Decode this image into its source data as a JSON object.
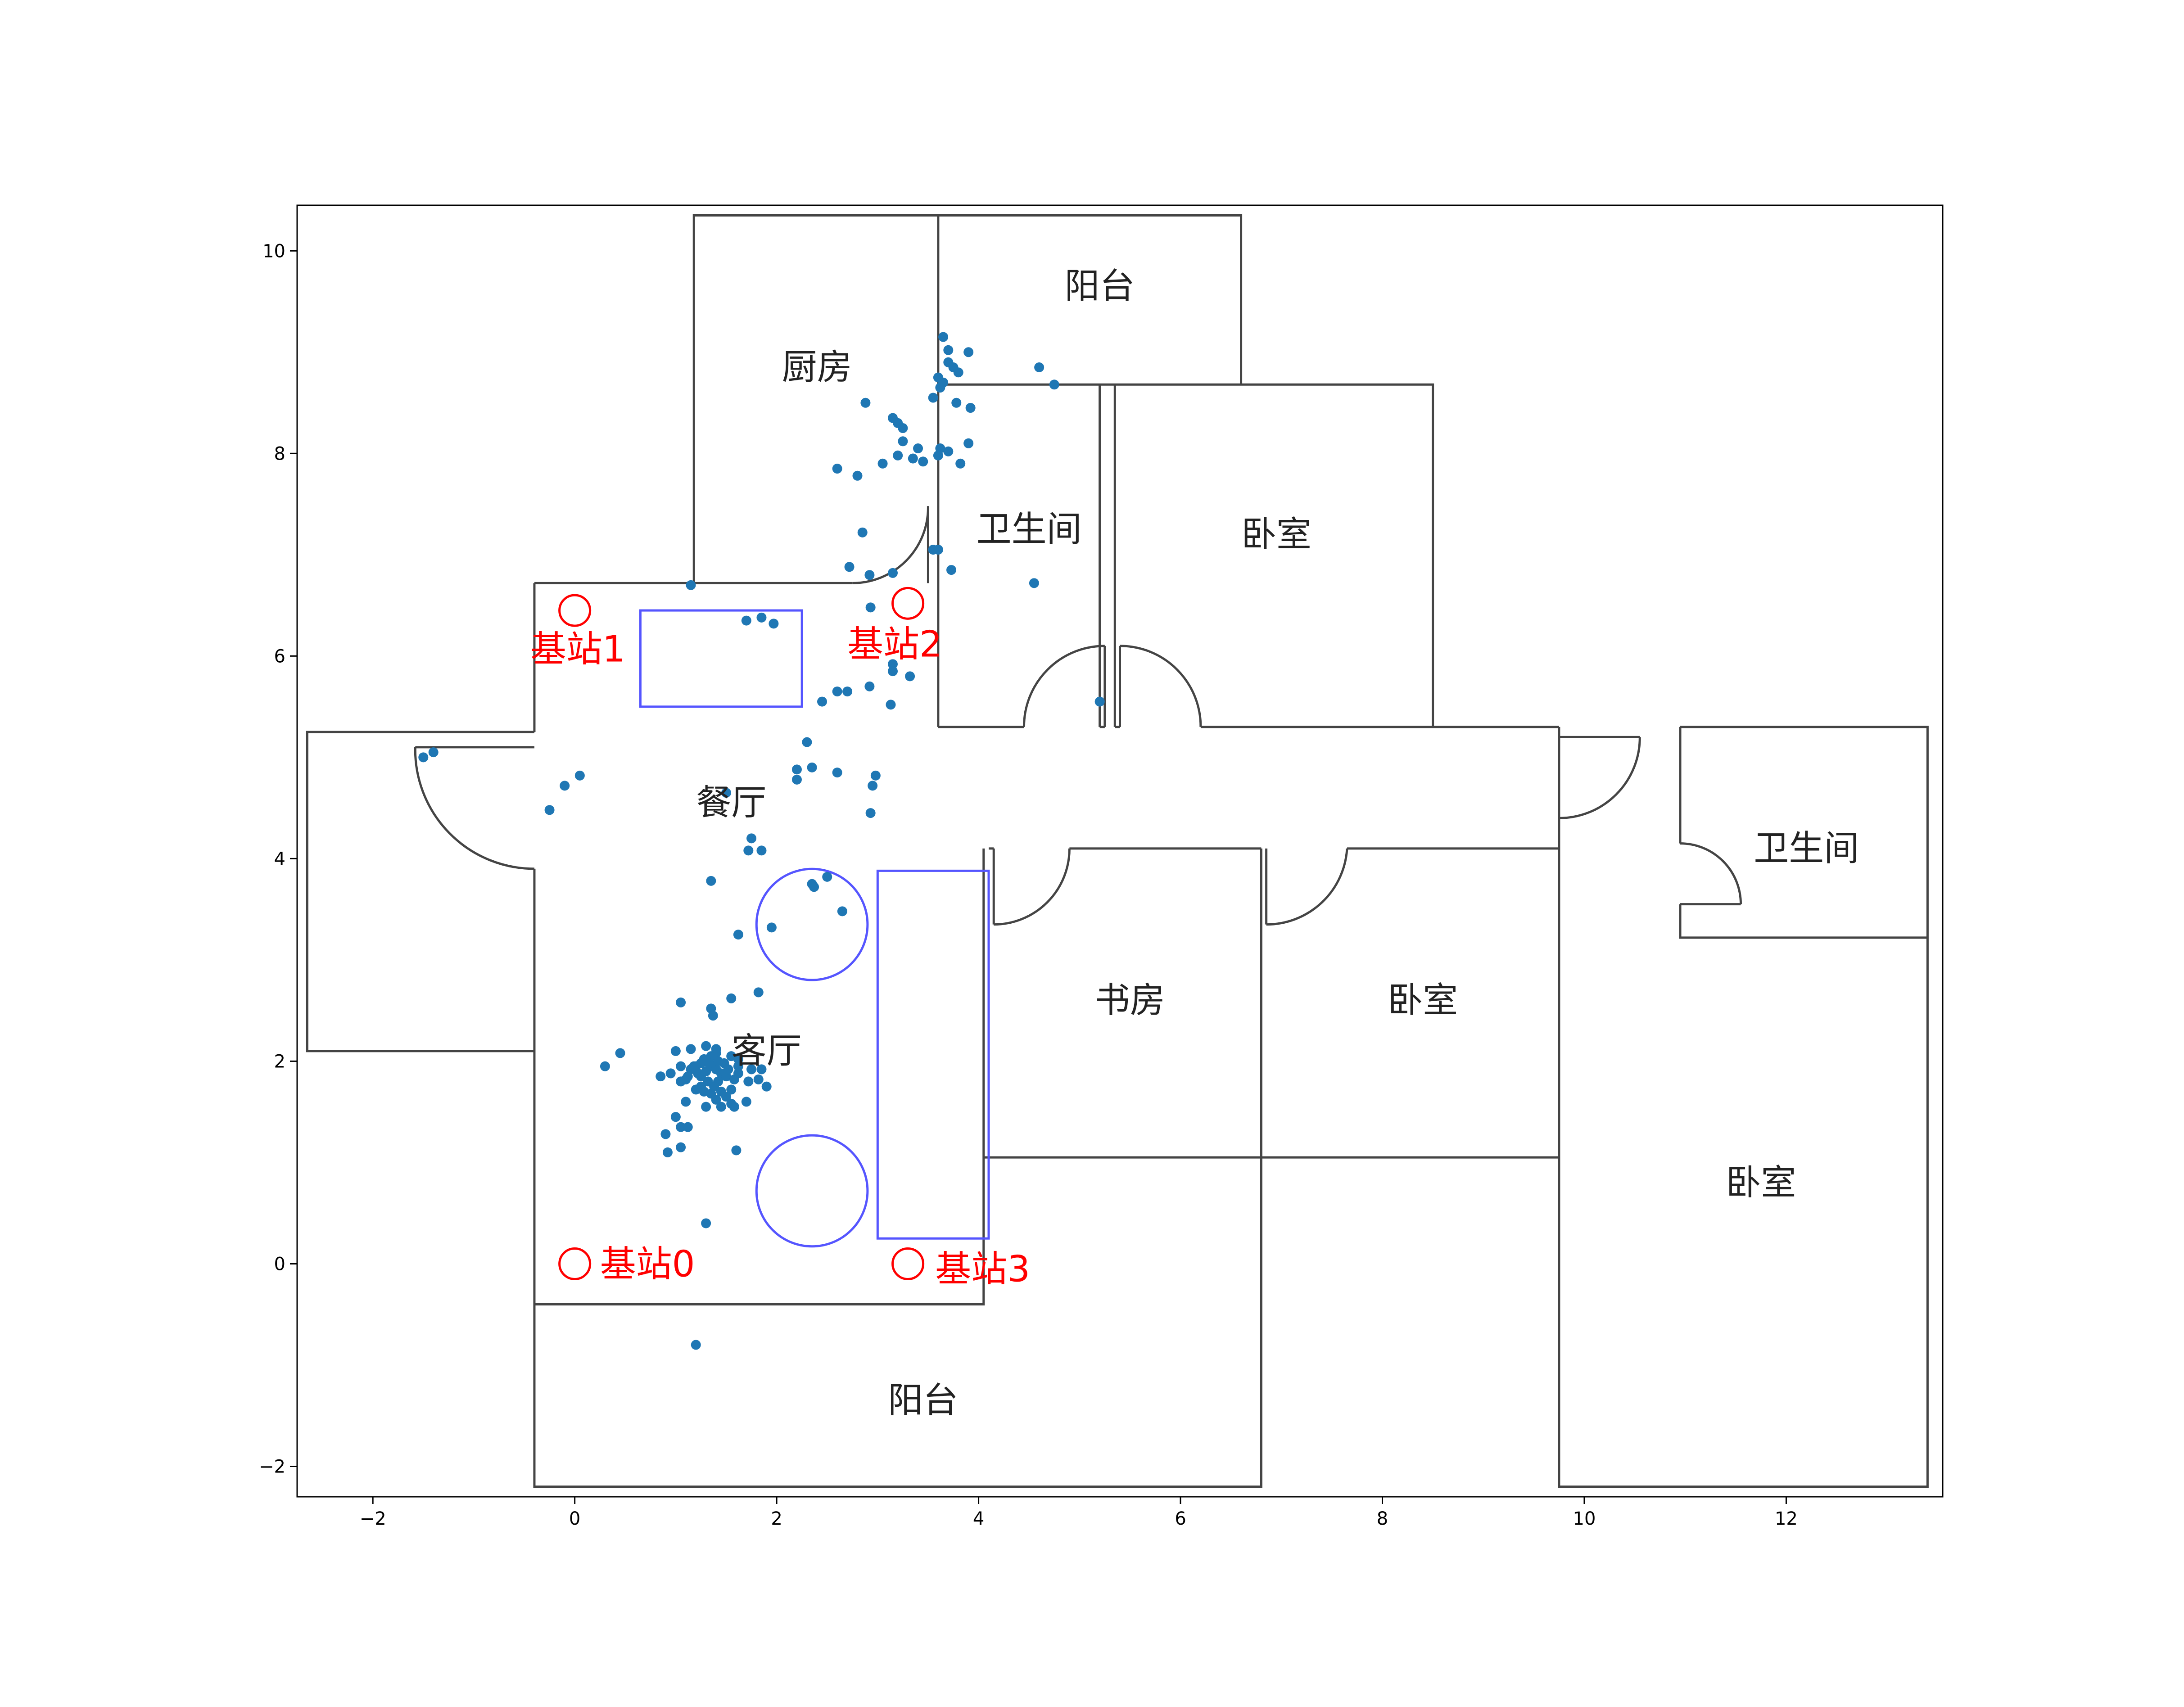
{
  "chart_data": {
    "type": "scatter",
    "title": "",
    "xlabel": "",
    "ylabel": "",
    "xlim": [
      -2.75,
      13.55
    ],
    "ylim": [
      -2.3,
      10.45
    ],
    "xticks": [
      -2,
      0,
      2,
      4,
      6,
      8,
      10,
      12
    ],
    "yticks": [
      -2,
      0,
      2,
      4,
      6,
      8,
      10
    ],
    "xtick_labels": [
      "−2",
      "0",
      "2",
      "4",
      "6",
      "8",
      "10",
      "12"
    ],
    "ytick_labels": [
      "−2",
      "0",
      "2",
      "4",
      "6",
      "8",
      "10"
    ],
    "grid": false,
    "colors": {
      "points": "#1f77b4",
      "walls": "#444444",
      "furniture": "#5555ff",
      "stations": "#ff0000",
      "room_labels": "#222222"
    },
    "rooms": [
      {
        "label": "厨房",
        "x": 2.4,
        "y": 8.85
      },
      {
        "label": "阳台",
        "x": 5.2,
        "y": 9.65
      },
      {
        "label": "卫生间",
        "x": 4.5,
        "y": 7.25
      },
      {
        "label": "卧室",
        "x": 6.95,
        "y": 7.2
      },
      {
        "label": "餐厅",
        "x": 1.55,
        "y": 4.55
      },
      {
        "label": "客厅",
        "x": 1.9,
        "y": 2.1
      },
      {
        "label": "书房",
        "x": 5.5,
        "y": 2.6
      },
      {
        "label": "卧室",
        "x": 8.4,
        "y": 2.6
      },
      {
        "label": "卫生间",
        "x": 12.2,
        "y": 4.1
      },
      {
        "label": "卧室",
        "x": 11.75,
        "y": 0.8
      },
      {
        "label": "阳台",
        "x": 3.45,
        "y": -1.35
      }
    ],
    "stations": [
      {
        "label": "基站0",
        "x": 0,
        "y": 0
      },
      {
        "label": "基站1",
        "x": 0,
        "y": 6.45
      },
      {
        "label": "基站2",
        "x": 3.3,
        "y": 6.52
      },
      {
        "label": "基站3",
        "x": 3.3,
        "y": 0
      }
    ],
    "points": [
      [
        1.15,
        6.7
      ],
      [
        1.7,
        6.35
      ],
      [
        1.85,
        6.38
      ],
      [
        1.97,
        6.32
      ],
      [
        2.85,
        7.22
      ],
      [
        2.72,
        6.88
      ],
      [
        2.92,
        6.8
      ],
      [
        3.15,
        6.82
      ],
      [
        2.93,
        6.48
      ],
      [
        3.15,
        5.92
      ],
      [
        3.15,
        5.85
      ],
      [
        3.32,
        5.8
      ],
      [
        3.13,
        5.52
      ],
      [
        2.92,
        5.7
      ],
      [
        2.6,
        5.65
      ],
      [
        2.7,
        5.65
      ],
      [
        2.45,
        5.55
      ],
      [
        2.3,
        5.15
      ],
      [
        2.2,
        4.88
      ],
      [
        2.35,
        4.9
      ],
      [
        2.6,
        4.85
      ],
      [
        2.2,
        4.78
      ],
      [
        2.98,
        4.82
      ],
      [
        2.95,
        4.72
      ],
      [
        2.93,
        4.45
      ],
      [
        0.05,
        4.82
      ],
      [
        -0.1,
        4.72
      ],
      [
        -0.25,
        4.48
      ],
      [
        -1.4,
        5.05
      ],
      [
        -1.5,
        5.0
      ],
      [
        1.5,
        4.65
      ],
      [
        1.75,
        4.2
      ],
      [
        1.72,
        4.08
      ],
      [
        1.85,
        4.08
      ],
      [
        1.35,
        3.78
      ],
      [
        2.5,
        3.82
      ],
      [
        2.35,
        3.75
      ],
      [
        2.37,
        3.72
      ],
      [
        2.65,
        3.48
      ],
      [
        1.95,
        3.32
      ],
      [
        1.62,
        3.25
      ],
      [
        1.82,
        2.68
      ],
      [
        1.55,
        2.62
      ],
      [
        1.05,
        2.58
      ],
      [
        1.35,
        2.52
      ],
      [
        1.37,
        2.45
      ],
      [
        3.65,
        9.15
      ],
      [
        3.7,
        9.02
      ],
      [
        3.9,
        9.0
      ],
      [
        3.7,
        8.9
      ],
      [
        3.75,
        8.85
      ],
      [
        3.8,
        8.8
      ],
      [
        4.6,
        8.85
      ],
      [
        4.75,
        8.68
      ],
      [
        3.6,
        8.75
      ],
      [
        3.65,
        8.7
      ],
      [
        3.62,
        8.65
      ],
      [
        3.55,
        8.55
      ],
      [
        3.78,
        8.5
      ],
      [
        3.92,
        8.45
      ],
      [
        2.88,
        8.5
      ],
      [
        3.15,
        8.35
      ],
      [
        3.2,
        8.3
      ],
      [
        3.25,
        8.25
      ],
      [
        3.25,
        8.12
      ],
      [
        3.4,
        8.05
      ],
      [
        3.2,
        7.98
      ],
      [
        3.35,
        7.95
      ],
      [
        3.45,
        7.92
      ],
      [
        3.62,
        8.05
      ],
      [
        3.6,
        7.98
      ],
      [
        3.9,
        8.1
      ],
      [
        3.7,
        8.02
      ],
      [
        3.05,
        7.9
      ],
      [
        2.6,
        7.85
      ],
      [
        2.8,
        7.78
      ],
      [
        3.82,
        7.9
      ],
      [
        3.55,
        7.05
      ],
      [
        3.6,
        7.05
      ],
      [
        3.73,
        6.85
      ],
      [
        4.55,
        6.72
      ],
      [
        5.2,
        5.55
      ],
      [
        0.45,
        2.08
      ],
      [
        0.3,
        1.95
      ],
      [
        1.0,
        2.1
      ],
      [
        1.15,
        2.12
      ],
      [
        1.3,
        2.15
      ],
      [
        1.4,
        2.12
      ],
      [
        1.55,
        2.05
      ],
      [
        1.62,
        1.95
      ],
      [
        1.75,
        1.92
      ],
      [
        1.85,
        1.92
      ],
      [
        1.82,
        1.82
      ],
      [
        1.72,
        1.8
      ],
      [
        1.9,
        1.75
      ],
      [
        1.55,
        1.72
      ],
      [
        1.45,
        1.7
      ],
      [
        1.35,
        1.68
      ],
      [
        1.2,
        1.72
      ],
      [
        1.1,
        1.82
      ],
      [
        0.85,
        1.85
      ],
      [
        0.95,
        1.88
      ],
      [
        1.05,
        1.8
      ],
      [
        1.25,
        1.85
      ],
      [
        1.3,
        1.9
      ],
      [
        1.35,
        1.95
      ],
      [
        1.4,
        1.92
      ],
      [
        1.45,
        1.88
      ],
      [
        1.5,
        1.85
      ],
      [
        1.28,
        2.02
      ],
      [
        1.35,
        2.05
      ],
      [
        1.4,
        2.08
      ],
      [
        1.25,
        1.98
      ],
      [
        1.2,
        1.95
      ],
      [
        1.15,
        1.92
      ],
      [
        1.32,
        1.8
      ],
      [
        1.42,
        1.8
      ],
      [
        1.38,
        1.75
      ],
      [
        1.58,
        1.82
      ],
      [
        1.62,
        1.88
      ],
      [
        1.7,
        1.6
      ],
      [
        1.5,
        1.65
      ],
      [
        1.55,
        1.58
      ],
      [
        1.4,
        1.62
      ],
      [
        1.45,
        1.55
      ],
      [
        1.3,
        1.55
      ],
      [
        1.58,
        1.55
      ],
      [
        1.25,
        1.75
      ],
      [
        1.1,
        1.6
      ],
      [
        1.0,
        1.45
      ],
      [
        1.05,
        1.35
      ],
      [
        1.12,
        1.35
      ],
      [
        0.9,
        1.28
      ],
      [
        0.92,
        1.1
      ],
      [
        1.05,
        1.15
      ],
      [
        1.6,
        1.12
      ],
      [
        1.3,
        0.4
      ],
      [
        1.2,
        -0.8
      ],
      [
        1.18,
        1.95
      ],
      [
        1.33,
        1.98
      ],
      [
        1.48,
        1.98
      ],
      [
        1.52,
        1.92
      ],
      [
        1.22,
        1.88
      ],
      [
        1.12,
        1.85
      ],
      [
        1.42,
        2.0
      ],
      [
        1.62,
        2.02
      ],
      [
        1.05,
        1.95
      ],
      [
        1.28,
        1.7
      ]
    ]
  }
}
